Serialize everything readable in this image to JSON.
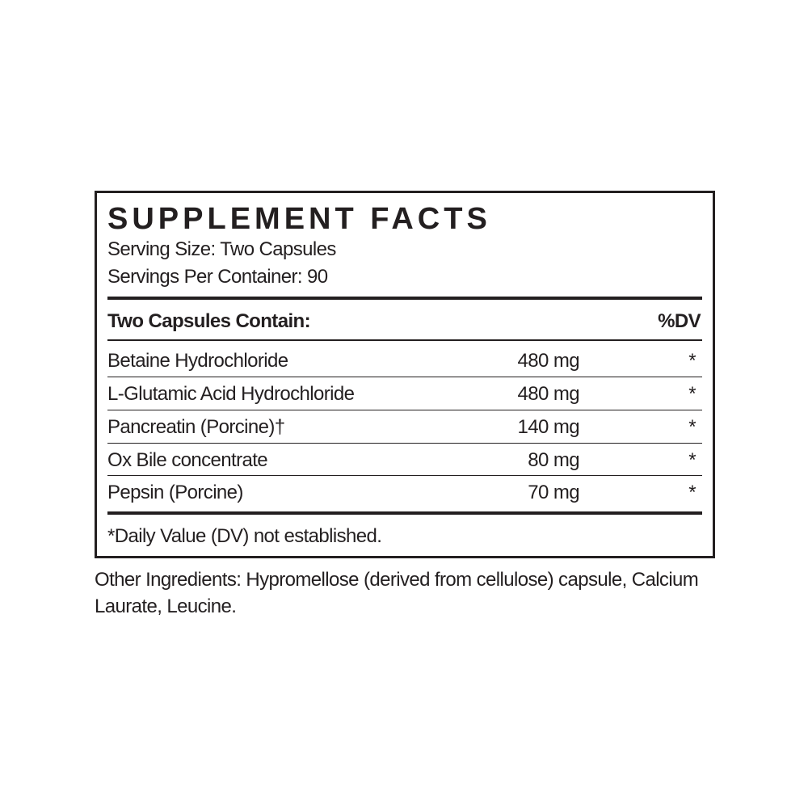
{
  "title": "SUPPLEMENT FACTS",
  "serving_size": "Serving Size: Two Capsules",
  "servings_per_container": "Servings Per Container: 90",
  "header": {
    "label": "Two Capsules Contain:",
    "dv": "%DV"
  },
  "rows": [
    {
      "name": "Betaine Hydrochloride",
      "amount": "480 mg",
      "dv": "*"
    },
    {
      "name": "L-Glutamic Acid Hydrochloride",
      "amount": "480 mg",
      "dv": "*"
    },
    {
      "name": "Pancreatin (Porcine)†",
      "amount": "140 mg",
      "dv": "*"
    },
    {
      "name": "Ox Bile concentrate",
      "amount": "80 mg",
      "dv": "*"
    },
    {
      "name": "Pepsin (Porcine)",
      "amount": "70 mg",
      "dv": "*"
    }
  ],
  "footnote": "*Daily Value (DV) not established.",
  "other_ingredients": "Other Ingredients: Hypromellose (derived from cellulose) capsule, Calcium Laurate, Leucine."
}
